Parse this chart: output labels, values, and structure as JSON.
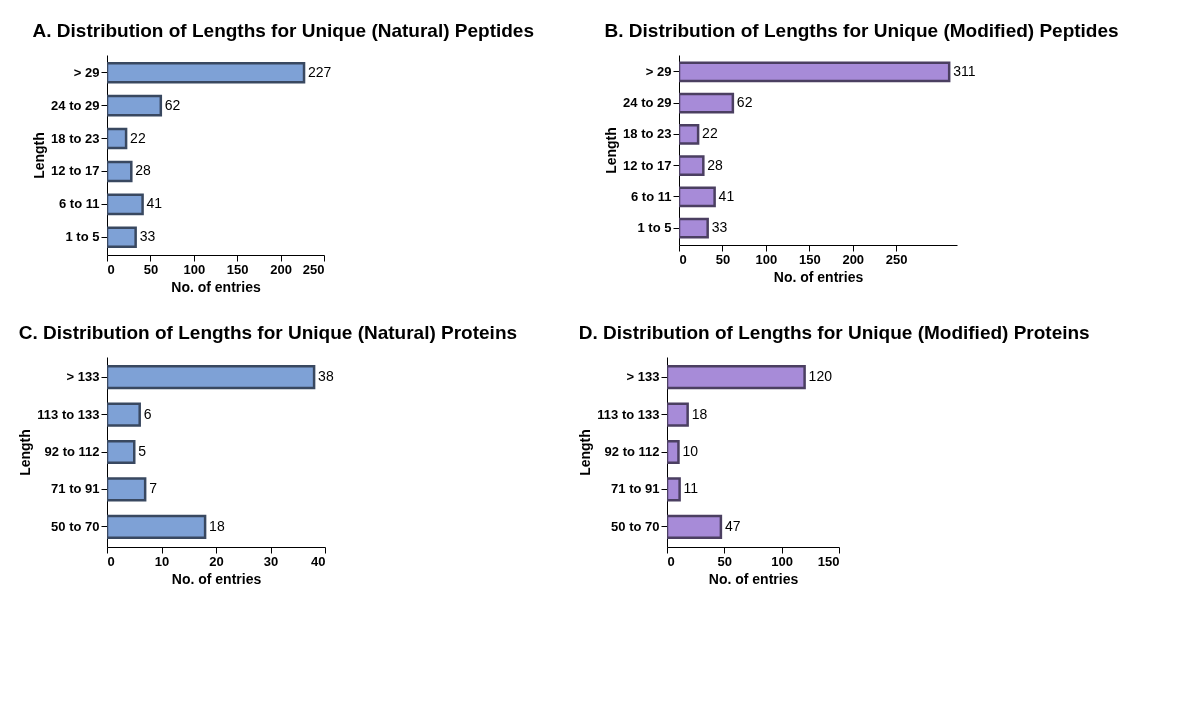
{
  "chart_data": [
    {
      "type": "bar",
      "orientation": "horizontal",
      "title": "A. Distribution of Lengths for Unique (Natural) Peptides",
      "xlabel": "No. of entries",
      "ylabel": "Length",
      "categories": [
        "> 29",
        "24 to 29",
        "18 to 23",
        "12 to 17",
        "6 to 11",
        "1 to 5"
      ],
      "values": [
        227,
        62,
        22,
        28,
        41,
        33
      ],
      "color": "#7ea1d6",
      "xlim": [
        0,
        250
      ],
      "xticks": [
        0,
        50,
        100,
        150,
        200,
        250
      ],
      "data_labels": true,
      "grid": false
    },
    {
      "type": "bar",
      "orientation": "horizontal",
      "title": "B. Distribution of Lengths for Unique (Modified) Peptides",
      "xlabel": "No. of entries",
      "ylabel": "Length",
      "categories": [
        "> 29",
        "24 to 29",
        "18 to 23",
        "12 to 17",
        "6 to 11",
        "1 to 5"
      ],
      "values": [
        311,
        62,
        22,
        28,
        41,
        33
      ],
      "color": "#a78bd8",
      "xlim": [
        0,
        320
      ],
      "xticks": [
        0,
        50,
        100,
        150,
        200,
        250
      ],
      "data_labels": true,
      "grid": false
    },
    {
      "type": "bar",
      "orientation": "horizontal",
      "title": "C. Distribution of Lengths for Unique (Natural) Proteins",
      "xlabel": "No. of entries",
      "ylabel": "Length",
      "categories": [
        "> 133",
        "113 to 133",
        "92 to 112",
        "71 to 91",
        "50 to 70"
      ],
      "values": [
        38,
        6,
        5,
        7,
        18
      ],
      "color": "#7ea1d6",
      "xlim": [
        0,
        40
      ],
      "xticks": [
        0,
        10,
        20,
        30,
        40
      ],
      "data_labels": true,
      "grid": false
    },
    {
      "type": "bar",
      "orientation": "horizontal",
      "title": "D. Distribution of Lengths for Unique (Modified) Proteins",
      "xlabel": "No. of entries",
      "ylabel": "Length",
      "categories": [
        "> 133",
        "113 to 133",
        "92 to 112",
        "71 to 91",
        "50 to 70"
      ],
      "values": [
        120,
        18,
        10,
        11,
        47
      ],
      "color": "#a78bd8",
      "xlim": [
        0,
        150
      ],
      "xticks": [
        0,
        50,
        100,
        150
      ],
      "data_labels": true,
      "grid": false
    }
  ]
}
